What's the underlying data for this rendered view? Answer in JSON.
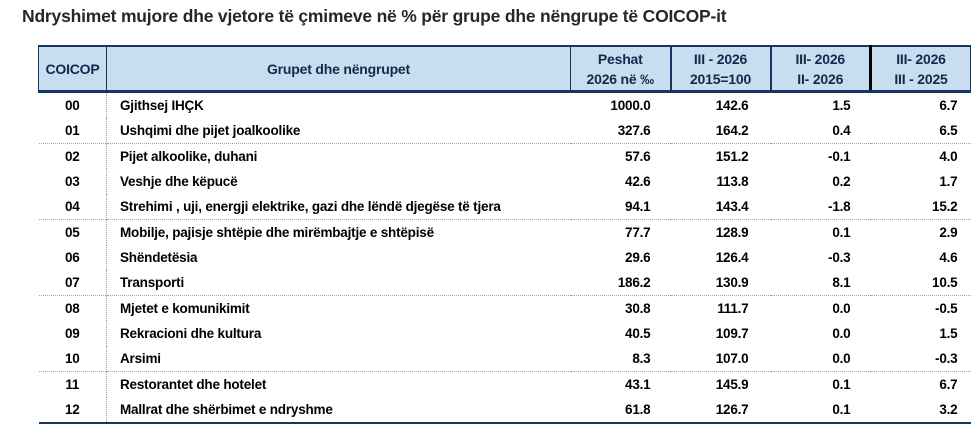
{
  "title": "Ndryshimet mujore dhe vjetore të çmimeve në % për grupe dhe nëngrupe të COICOP-it",
  "colors": {
    "header_bg": "#c9ddf0",
    "header_text": "#14284b",
    "border_dark_navy": "#17365d",
    "thick_divider_black": "#000000",
    "dotted_separator": "#97a5b3",
    "body_text": "#000000",
    "title_text": "#24272e"
  },
  "table": {
    "columns": [
      {
        "id": "coicop",
        "line1": "COICOP",
        "line2": ""
      },
      {
        "id": "groups",
        "line1": "Grupet dhe nëngrupet",
        "line2": ""
      },
      {
        "id": "weights",
        "line1": "Peshat",
        "line2": "2026 në ‰"
      },
      {
        "id": "index",
        "line1": "III - 2026",
        "line2": "2015=100"
      },
      {
        "id": "monthly",
        "line1": "III- 2026",
        "line2": "II- 2026"
      },
      {
        "id": "annual",
        "line1": "III- 2026",
        "line2": "III - 2025"
      }
    ],
    "rows": [
      {
        "code": "00",
        "name": "Gjithsej IHÇK",
        "weight": "1000.0",
        "index": "142.6",
        "monthly": "1.5",
        "annual": "6.7",
        "group_start": false
      },
      {
        "code": "01",
        "name": "Ushqimi dhe pijet joalkoolike",
        "weight": "327.6",
        "index": "164.2",
        "monthly": "0.4",
        "annual": "6.5",
        "group_start": false
      },
      {
        "code": "02",
        "name": "Pijet alkoolike, duhani",
        "weight": "57.6",
        "index": "151.2",
        "monthly": "-0.1",
        "annual": "4.0",
        "group_start": true
      },
      {
        "code": "03",
        "name": "Veshje dhe këpucë",
        "weight": "42.6",
        "index": "113.8",
        "monthly": "0.2",
        "annual": "1.7",
        "group_start": false
      },
      {
        "code": "04",
        "name": "Strehimi , uji, energji elektrike, gazi dhe lëndë djegëse të tjera",
        "weight": "94.1",
        "index": "143.4",
        "monthly": "-1.8",
        "annual": "15.2",
        "group_start": false
      },
      {
        "code": "05",
        "name": "Mobilje, pajisje shtëpie dhe mirëmbajtje e shtëpisë",
        "weight": "77.7",
        "index": "128.9",
        "monthly": "0.1",
        "annual": "2.9",
        "group_start": true
      },
      {
        "code": "06",
        "name": "Shëndetësia",
        "weight": "29.6",
        "index": "126.4",
        "monthly": "-0.3",
        "annual": "4.6",
        "group_start": false
      },
      {
        "code": "07",
        "name": "Transporti",
        "weight": "186.2",
        "index": "130.9",
        "monthly": "8.1",
        "annual": "10.5",
        "group_start": false
      },
      {
        "code": "08",
        "name": "Mjetet e komunikimit",
        "weight": "30.8",
        "index": "111.7",
        "monthly": "0.0",
        "annual": "-0.5",
        "group_start": true
      },
      {
        "code": "09",
        "name": "Rekracioni dhe kultura",
        "weight": "40.5",
        "index": "109.7",
        "monthly": "0.0",
        "annual": "1.5",
        "group_start": false
      },
      {
        "code": "10",
        "name": "Arsimi",
        "weight": "8.3",
        "index": "107.0",
        "monthly": "0.0",
        "annual": "-0.3",
        "group_start": false
      },
      {
        "code": "11",
        "name": "Restorantet dhe hotelet",
        "weight": "43.1",
        "index": "145.9",
        "monthly": "0.1",
        "annual": "6.7",
        "group_start": true
      },
      {
        "code": "12",
        "name": "Mallrat dhe shërbimet e ndryshme",
        "weight": "61.8",
        "index": "126.7",
        "monthly": "0.1",
        "annual": "3.2",
        "group_start": false
      }
    ]
  },
  "chart_data": {
    "type": "table",
    "title": "Ndryshimet mujore dhe vjetore të çmimeve në % për grupe dhe nëngrupe të COICOP-it",
    "columns": [
      "COICOP",
      "Grupet dhe nëngrupet",
      "Peshat 2026 në ‰",
      "III - 2026 (2015=100)",
      "III- 2026 / II- 2026",
      "III- 2026 / III - 2025"
    ],
    "rows": [
      [
        "00",
        "Gjithsej IHÇK",
        1000.0,
        142.6,
        1.5,
        6.7
      ],
      [
        "01",
        "Ushqimi dhe pijet joalkoolike",
        327.6,
        164.2,
        0.4,
        6.5
      ],
      [
        "02",
        "Pijet alkoolike, duhani",
        57.6,
        151.2,
        -0.1,
        4.0
      ],
      [
        "03",
        "Veshje dhe këpucë",
        42.6,
        113.8,
        0.2,
        1.7
      ],
      [
        "04",
        "Strehimi , uji, energji elektrike, gazi dhe lëndë djegëse të tjera",
        94.1,
        143.4,
        -1.8,
        15.2
      ],
      [
        "05",
        "Mobilje, pajisje shtëpie dhe mirëmbajtje e shtëpisë",
        77.7,
        128.9,
        0.1,
        2.9
      ],
      [
        "06",
        "Shëndetësia",
        29.6,
        126.4,
        -0.3,
        4.6
      ],
      [
        "07",
        "Transporti",
        186.2,
        130.9,
        8.1,
        10.5
      ],
      [
        "08",
        "Mjetet e komunikimit",
        30.8,
        111.7,
        0.0,
        -0.5
      ],
      [
        "09",
        "Rekracioni dhe kultura",
        40.5,
        109.7,
        0.0,
        1.5
      ],
      [
        "10",
        "Arsimi",
        8.3,
        107.0,
        0.0,
        -0.3
      ],
      [
        "11",
        "Restorantet dhe hotelet",
        43.1,
        145.9,
        0.1,
        6.7
      ],
      [
        "12",
        "Mallrat dhe shërbimet e ndryshme",
        61.8,
        126.7,
        0.1,
        3.2
      ]
    ]
  }
}
